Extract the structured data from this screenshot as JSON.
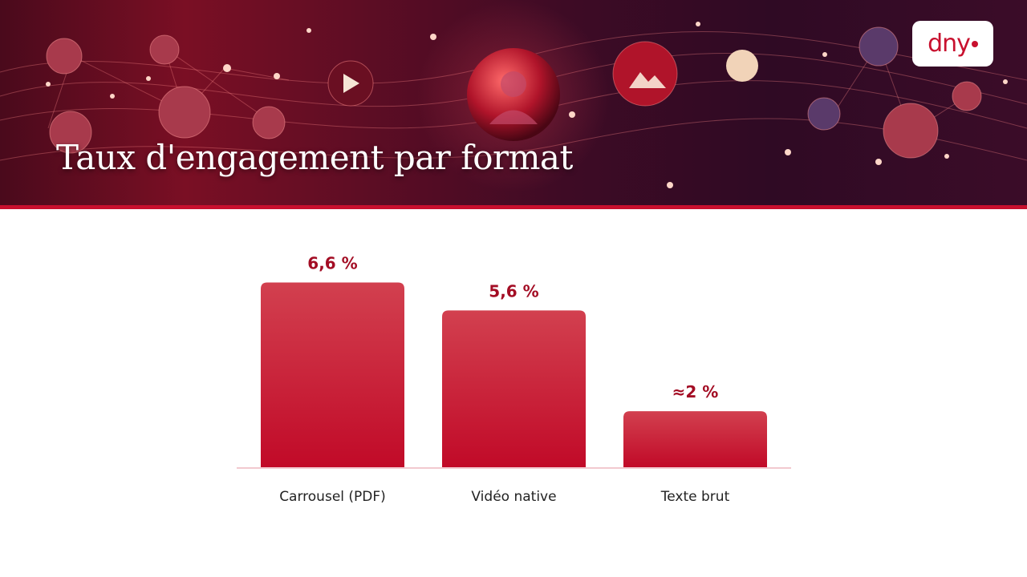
{
  "header": {
    "title": "Taux d'engagement par format",
    "logo_text": "dny"
  },
  "colors": {
    "accent": "#c8102e",
    "bar_top": "#d2404f",
    "bar_bottom": "#c10a28",
    "value_label": "#a30d24"
  },
  "chart_data": {
    "type": "bar",
    "title": "",
    "xlabel": "",
    "ylabel": "",
    "categories": [
      "Carrousel (PDF)",
      "Vidéo native",
      "Texte brut"
    ],
    "values": [
      6.6,
      5.6,
      2
    ],
    "value_labels": [
      "6,6 %",
      "5,6 %",
      "≈2 %"
    ],
    "ylim": [
      0,
      7.33
    ],
    "grid": false,
    "legend": "none"
  }
}
